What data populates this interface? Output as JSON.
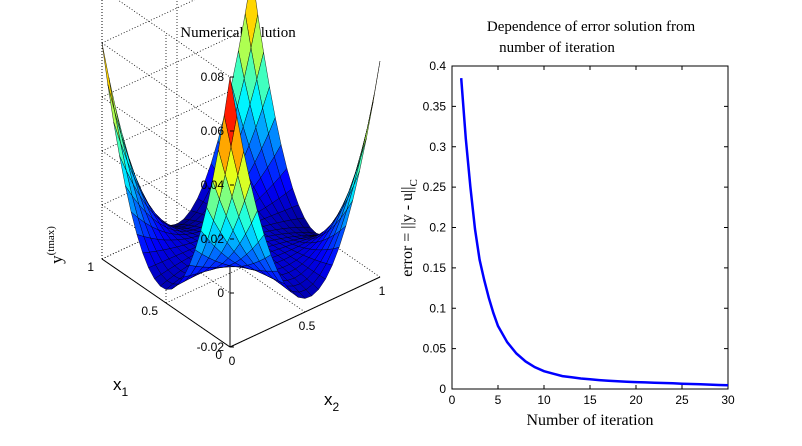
{
  "chart_data": [
    {
      "type": "surface",
      "title": "Numerical solution",
      "xlabel": "x",
      "xlabel_sub": "2",
      "ylabel": "x",
      "ylabel_sub": "1",
      "zlabel": "y",
      "zlabel_sup": "(tmax)",
      "xlim": [
        0,
        1
      ],
      "ylim": [
        0,
        1
      ],
      "zlim": [
        -0.02,
        0.08
      ],
      "x_ticks": [
        "0",
        "0.5",
        "1"
      ],
      "y_ticks": [
        "0",
        "0.5",
        "1"
      ],
      "z_ticks": [
        "-0.02",
        "0",
        "0.02",
        "0.04",
        "0.06",
        "0.08"
      ],
      "colormap": "jet",
      "grid": true,
      "surface_note_values": {
        "corner_x0_y0": 0.08,
        "corner_x1_y0": 0.06,
        "corner_x0_y1": 0.06,
        "corner_x1_y1": 0.06,
        "min": -0.02
      }
    },
    {
      "type": "line",
      "title_line1": "Dependence of error solution from",
      "title_line2": "number of iteration",
      "xlabel": "Number of iteration",
      "ylabel_prefix": "error = ||y - u||",
      "ylabel_sub": "C",
      "xlim": [
        0,
        30
      ],
      "ylim": [
        0,
        0.4
      ],
      "x_ticks": [
        "0",
        "5",
        "10",
        "15",
        "20",
        "25",
        "30"
      ],
      "y_ticks": [
        "0",
        "0.05",
        "0.1",
        "0.15",
        "0.2",
        "0.25",
        "0.3",
        "0.35",
        "0.4"
      ],
      "color": "#0000ff",
      "series": [
        {
          "x": [
            1,
            1.5,
            2,
            2.5,
            3,
            3.5,
            4,
            4.5,
            5,
            6,
            7,
            8,
            9,
            10,
            11,
            12,
            13,
            14,
            15,
            16,
            17,
            18,
            19,
            20,
            21,
            22,
            23,
            24,
            25,
            26,
            27,
            28,
            29,
            30
          ],
          "values": [
            0.385,
            0.31,
            0.25,
            0.198,
            0.16,
            0.135,
            0.113,
            0.094,
            0.078,
            0.058,
            0.044,
            0.034,
            0.027,
            0.022,
            0.019,
            0.016,
            0.0145,
            0.013,
            0.012,
            0.011,
            0.0102,
            0.0095,
            0.009,
            0.0086,
            0.0082,
            0.0078,
            0.0074,
            0.007,
            0.0066,
            0.0062,
            0.0058,
            0.0054,
            0.005,
            0.0046
          ]
        }
      ]
    }
  ]
}
